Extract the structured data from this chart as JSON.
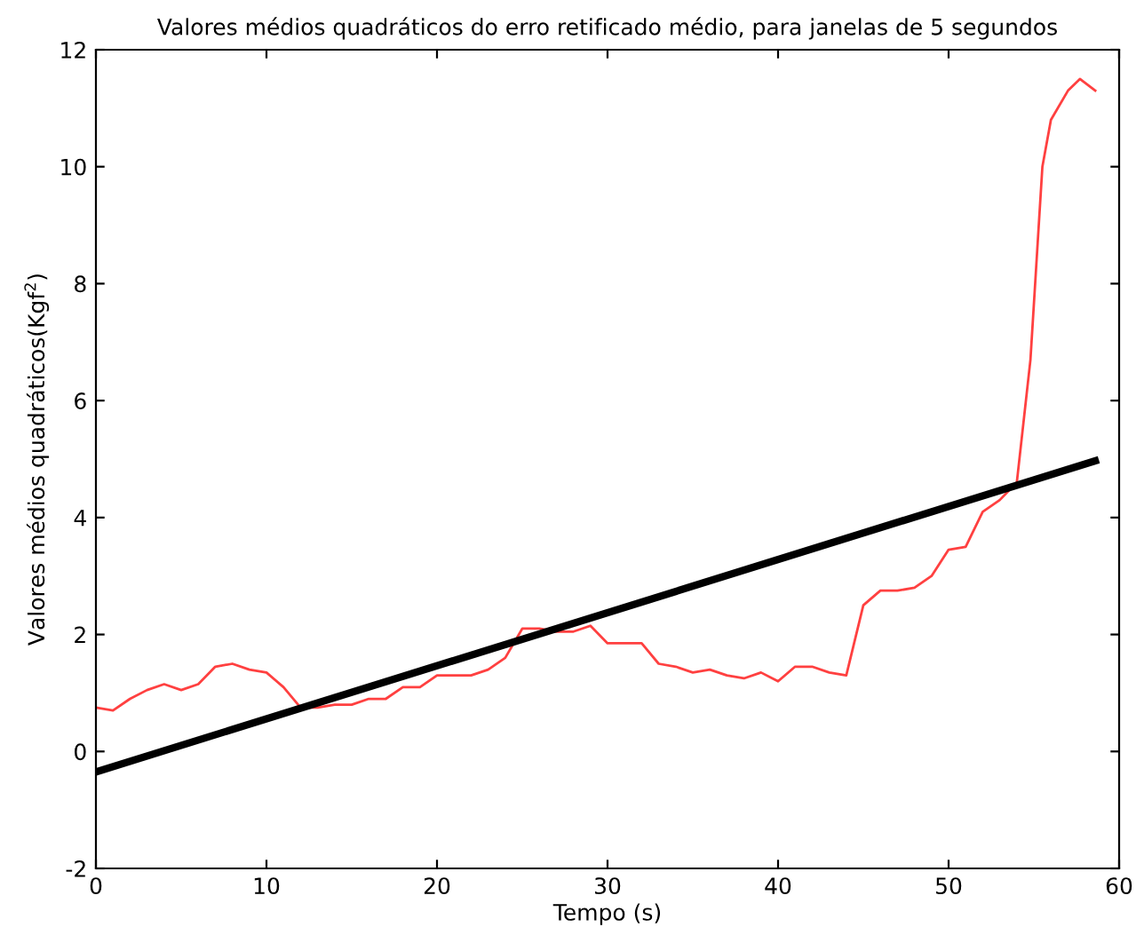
{
  "chart_data": {
    "type": "line",
    "title": "Valores médios quadráticos do erro retificado médio, para janelas de 5 segundos",
    "xlabel": "Tempo (s)",
    "ylabel": "Valores médios quadráticos(Kgf$^{2}$)",
    "xlim": [
      0,
      60
    ],
    "xticks": [
      0,
      10,
      20,
      30,
      40,
      50,
      60
    ],
    "ylim": [
      -2,
      12
    ],
    "yticks": [
      -2,
      0,
      2,
      4,
      6,
      8,
      10,
      12
    ],
    "grid": false,
    "legend": false,
    "marker": "none",
    "series": [
      {
        "color": "#ff4040",
        "line_style": "solid",
        "x": [
          0,
          1,
          2,
          3,
          4,
          5,
          6,
          7,
          8,
          9,
          10,
          11,
          12,
          13,
          14,
          15,
          16,
          17,
          18,
          19,
          20,
          21,
          22,
          23,
          24,
          25,
          26,
          27,
          28,
          29,
          30,
          31,
          32,
          33,
          34,
          35,
          36,
          37,
          38,
          39,
          40,
          41,
          42,
          43,
          44,
          45,
          46,
          47,
          48,
          49,
          50,
          51,
          52,
          53,
          54,
          54.8,
          55.5,
          56,
          57,
          57.7,
          58.6
        ],
        "values": [
          0.75,
          0.7,
          0.9,
          1.05,
          1.15,
          1.05,
          1.15,
          1.45,
          1.5,
          1.4,
          1.35,
          1.1,
          0.75,
          0.75,
          0.8,
          0.8,
          0.9,
          0.9,
          1.1,
          1.1,
          1.3,
          1.3,
          1.3,
          1.4,
          1.6,
          2.1,
          2.1,
          2.05,
          2.05,
          2.15,
          1.85,
          1.85,
          1.85,
          1.5,
          1.45,
          1.35,
          1.4,
          1.3,
          1.25,
          1.35,
          1.2,
          1.45,
          1.45,
          1.35,
          1.3,
          2.5,
          2.75,
          2.75,
          2.8,
          3.0,
          3.45,
          3.5,
          4.1,
          4.3,
          4.6,
          6.7,
          10.0,
          10.8,
          11.3,
          11.5,
          11.3
        ]
      },
      {
        "color": "#000000",
        "line_style": "solid",
        "x": [
          0,
          58.6
        ],
        "values": [
          -0.35,
          4.97
        ]
      }
    ]
  }
}
